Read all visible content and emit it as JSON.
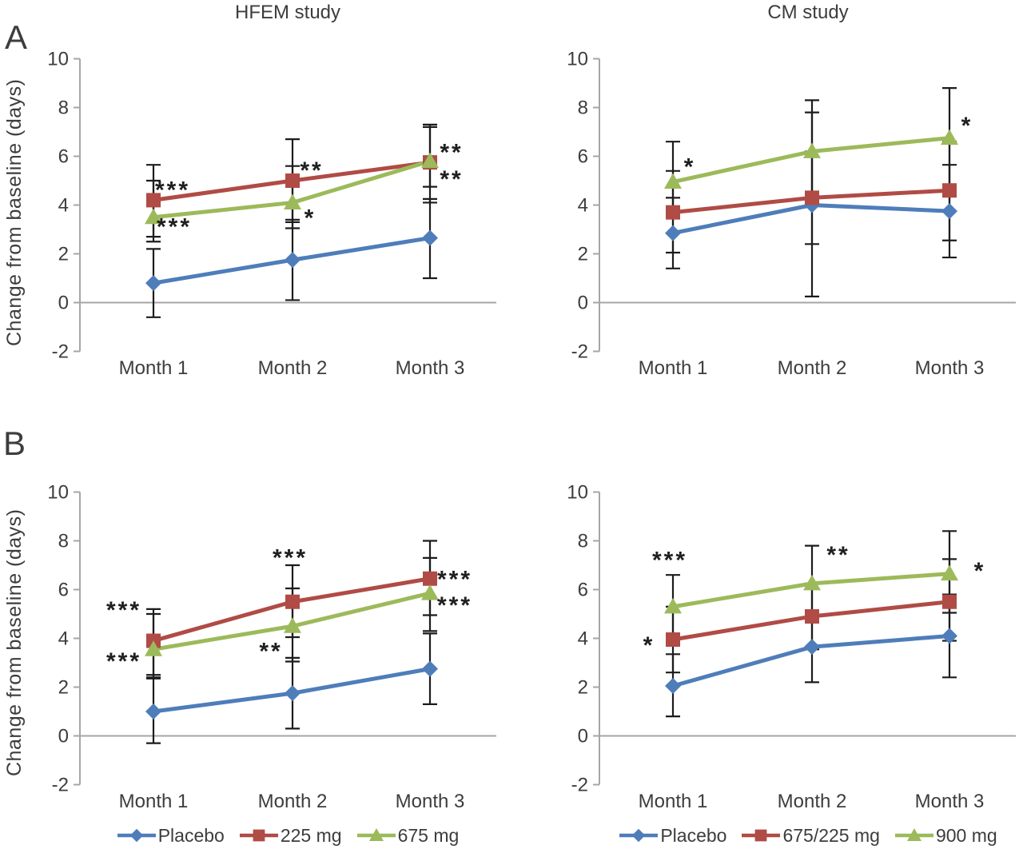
{
  "figure": {
    "panel_a_label": "A",
    "panel_b_label": "B",
    "y_axis_label": "Change from baseline (days)",
    "titles": {
      "left": "HFEM study",
      "right": "CM study"
    }
  },
  "colors": {
    "placebo_blue": "#4E7DBA",
    "mid_dose_red": "#B04B45",
    "high_dose_green": "#9CBA5A",
    "axis_gray": "#A6A6A6",
    "error_bar_black": "#1C1C1C",
    "text_gray": "#3D3D3D"
  },
  "chart_data": [
    {
      "id": "a-hfem",
      "panel": "A",
      "study": "HFEM study",
      "type": "line",
      "categories": [
        "Month 1",
        "Month 2",
        "Month 3"
      ],
      "ylim": [
        -2,
        10
      ],
      "yticks": [
        -2,
        0,
        2,
        4,
        6,
        8,
        10
      ],
      "grid": false,
      "legend_position": "none",
      "series": [
        {
          "name": "Placebo",
          "marker": "diamond",
          "color": "#4E7DBA",
          "values": [
            0.8,
            1.75,
            2.65
          ],
          "err_lo": [
            -0.6,
            0.1,
            1.0
          ],
          "err_hi": [
            2.2,
            3.4,
            4.25
          ]
        },
        {
          "name": "225 mg",
          "marker": "square",
          "color": "#B04B45",
          "values": [
            4.2,
            5.0,
            5.75
          ],
          "err_lo": [
            2.7,
            3.3,
            4.1
          ],
          "err_hi": [
            5.65,
            6.7,
            7.3
          ]
        },
        {
          "name": "675 mg",
          "marker": "triangle",
          "color": "#9CBA5A",
          "values": [
            3.5,
            4.1,
            5.8
          ],
          "err_lo": [
            2.5,
            3.05,
            4.75
          ],
          "err_hi": [
            5.0,
            5.6,
            7.2
          ]
        }
      ],
      "annotations": [
        {
          "text": "***",
          "month": 0,
          "dx": 24,
          "value": 4.75
        },
        {
          "text": "***",
          "month": 0,
          "dx": 26,
          "value": 3.25
        },
        {
          "text": "**",
          "month": 1,
          "dx": 24,
          "value": 5.55
        },
        {
          "text": "*",
          "month": 1,
          "dx": 22,
          "value": 3.6
        },
        {
          "text": "**",
          "month": 2,
          "dx": 27,
          "value": 6.3
        },
        {
          "text": "**",
          "month": 2,
          "dx": 27,
          "value": 5.2
        }
      ]
    },
    {
      "id": "a-cm",
      "panel": "A",
      "study": "CM study",
      "type": "line",
      "categories": [
        "Month 1",
        "Month 2",
        "Month 3"
      ],
      "ylim": [
        -2,
        10
      ],
      "yticks": [
        -2,
        0,
        2,
        4,
        6,
        8,
        10
      ],
      "grid": false,
      "legend_position": "none",
      "series": [
        {
          "name": "Placebo",
          "marker": "diamond",
          "color": "#4E7DBA",
          "values": [
            2.85,
            4.0,
            3.75
          ],
          "err_lo": [
            1.4,
            0.25,
            1.85
          ],
          "err_hi": [
            4.3,
            7.8,
            5.65
          ]
        },
        {
          "name": "675/225 mg",
          "marker": "square",
          "color": "#B04B45",
          "values": [
            3.7,
            4.3,
            4.6
          ],
          "err_lo": [
            2.05,
            2.4,
            2.55
          ],
          "err_hi": [
            5.4,
            6.2,
            6.6
          ]
        },
        {
          "name": "900 mg",
          "marker": "triangle",
          "color": "#9CBA5A",
          "values": [
            4.95,
            6.2,
            6.75
          ],
          "err_lo": [
            3.5,
            4.1,
            4.7
          ],
          "err_hi": [
            6.6,
            8.3,
            8.8
          ]
        }
      ],
      "annotations": [
        {
          "text": "*",
          "month": 0,
          "dx": 21,
          "value": 5.7
        },
        {
          "text": "*",
          "month": 2,
          "dx": 22,
          "value": 7.4
        }
      ]
    },
    {
      "id": "b-hfem",
      "panel": "B",
      "study": "HFEM study",
      "type": "line",
      "categories": [
        "Month 1",
        "Month 2",
        "Month 3"
      ],
      "ylim": [
        -2,
        10
      ],
      "yticks": [
        -2,
        0,
        2,
        4,
        6,
        8,
        10
      ],
      "grid": false,
      "legend_position": "bottom",
      "series": [
        {
          "name": "Placebo",
          "marker": "diamond",
          "color": "#4E7DBA",
          "values": [
            1.0,
            1.75,
            2.75
          ],
          "err_lo": [
            -0.3,
            0.3,
            1.3
          ],
          "err_hi": [
            2.4,
            3.2,
            4.2
          ]
        },
        {
          "name": "225 mg",
          "marker": "square",
          "color": "#B04B45",
          "values": [
            3.9,
            5.5,
            6.45
          ],
          "err_lo": [
            2.5,
            4.05,
            4.95
          ],
          "err_hi": [
            5.2,
            7.0,
            8.0
          ]
        },
        {
          "name": "675 mg",
          "marker": "triangle",
          "color": "#9CBA5A",
          "values": [
            3.55,
            4.5,
            5.85
          ],
          "err_lo": [
            2.35,
            3.05,
            4.3
          ],
          "err_hi": [
            5.0,
            6.05,
            7.3
          ]
        }
      ],
      "annotations": [
        {
          "text": "***",
          "month": 0,
          "dx": -37,
          "value": 5.3
        },
        {
          "text": "***",
          "month": 0,
          "dx": -37,
          "value": 3.2
        },
        {
          "text": "***",
          "month": 1,
          "dx": -3,
          "value": 7.45
        },
        {
          "text": "**",
          "month": 1,
          "dx": -27,
          "value": 3.6
        },
        {
          "text": "***",
          "month": 2,
          "dx": 31,
          "value": 6.55
        },
        {
          "text": "***",
          "month": 2,
          "dx": 31,
          "value": 5.5
        }
      ]
    },
    {
      "id": "b-cm",
      "panel": "B",
      "study": "CM study",
      "type": "line",
      "categories": [
        "Month 1",
        "Month 2",
        "Month 3"
      ],
      "ylim": [
        -2,
        10
      ],
      "yticks": [
        -2,
        0,
        2,
        4,
        6,
        8,
        10
      ],
      "grid": false,
      "legend_position": "bottom",
      "series": [
        {
          "name": "Placebo",
          "marker": "diamond",
          "color": "#4E7DBA",
          "values": [
            2.05,
            3.65,
            4.1
          ],
          "err_lo": [
            0.8,
            2.2,
            2.4
          ],
          "err_hi": [
            3.35,
            5.1,
            5.8
          ]
        },
        {
          "name": "675/225 mg",
          "marker": "square",
          "color": "#B04B45",
          "values": [
            3.95,
            4.9,
            5.5
          ],
          "err_lo": [
            2.6,
            3.55,
            3.9
          ],
          "err_hi": [
            5.3,
            6.25,
            7.25
          ]
        },
        {
          "name": "900 mg",
          "marker": "triangle",
          "color": "#9CBA5A",
          "values": [
            5.3,
            6.25,
            6.65
          ],
          "err_lo": [
            4.0,
            4.9,
            5.05
          ],
          "err_hi": [
            6.6,
            7.8,
            8.4
          ]
        }
      ],
      "annotations": [
        {
          "text": "***",
          "month": 0,
          "dx": -4,
          "value": 7.35
        },
        {
          "text": "*",
          "month": 0,
          "dx": -30,
          "value": 3.85
        },
        {
          "text": "**",
          "month": 1,
          "dx": 33,
          "value": 7.55
        },
        {
          "text": "*",
          "month": 2,
          "dx": 38,
          "value": 6.9
        }
      ]
    }
  ],
  "legends": {
    "left": [
      {
        "label": "Placebo",
        "marker": "diamond",
        "color": "#4E7DBA"
      },
      {
        "label": "225 mg",
        "marker": "square",
        "color": "#B04B45"
      },
      {
        "label": "675 mg",
        "marker": "triangle",
        "color": "#9CBA5A"
      }
    ],
    "right": [
      {
        "label": "Placebo",
        "marker": "diamond",
        "color": "#4E7DBA"
      },
      {
        "label": "675/225 mg",
        "marker": "square",
        "color": "#B04B45"
      },
      {
        "label": "900 mg",
        "marker": "triangle",
        "color": "#9CBA5A"
      }
    ]
  }
}
